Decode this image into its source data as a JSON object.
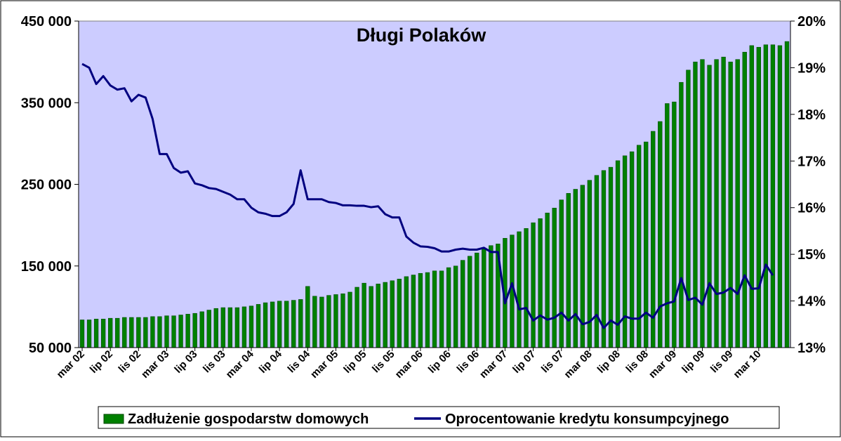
{
  "chart_data": {
    "type": "bar+line",
    "title": "Długi Polaków",
    "colors": {
      "plot_background": "#CCCCFF",
      "bars": "#008000",
      "bar_edge": "#004400",
      "line": "#000080"
    },
    "left_axis": {
      "ylim": [
        50000,
        450000
      ],
      "ticks": [
        50000,
        150000,
        250000,
        350000,
        450000
      ],
      "tick_labels": [
        "50 000",
        "150 000",
        "250 000",
        "350 000",
        "450 000"
      ]
    },
    "right_axis": {
      "ylim": [
        13,
        20
      ],
      "ticks": [
        13,
        14,
        15,
        16,
        17,
        18,
        19,
        20
      ],
      "tick_labels": [
        "13%",
        "14%",
        "15%",
        "16%",
        "17%",
        "18%",
        "19%",
        "20%"
      ]
    },
    "x_tick_labels": [
      "mar 02",
      "lip 02",
      "lis 02",
      "mar 03",
      "lip 03",
      "lis 03",
      "mar 04",
      "lip 04",
      "lis 04",
      "mar 05",
      "lip 05",
      "lis 05",
      "mar 06",
      "lip 06",
      "lis 06",
      "mar 07",
      "lip 07",
      "lis 07",
      "mar 08",
      "lip 08",
      "lis 08",
      "mar 09",
      "lip 09",
      "lis 09",
      "mar 10"
    ],
    "legend": {
      "position": "bottom",
      "bar_label": "Zadłużenie gospodarstw domowych",
      "line_label": "Oprocentowanie kredytu konsumpcyjnego"
    },
    "series_bar": [
      84000,
      84000,
      85000,
      85000,
      86000,
      86000,
      87000,
      87000,
      87000,
      87000,
      88000,
      88000,
      89000,
      89000,
      90000,
      91000,
      92000,
      94000,
      96000,
      98000,
      99000,
      99000,
      99000,
      100000,
      101000,
      103000,
      105000,
      106000,
      107000,
      107000,
      108000,
      109000,
      125000,
      113000,
      112000,
      114000,
      115000,
      116000,
      118000,
      124000,
      129000,
      125000,
      128000,
      130000,
      132000,
      134000,
      137000,
      139000,
      141000,
      142000,
      144000,
      144000,
      148000,
      150000,
      157000,
      162000,
      166000,
      171000,
      175000,
      177000,
      184000,
      188000,
      192000,
      196000,
      203000,
      208000,
      215000,
      221000,
      231000,
      239000,
      244000,
      249000,
      255000,
      261000,
      267000,
      271000,
      279000,
      285000,
      290000,
      298000,
      302000,
      315000,
      327000,
      349000,
      351000,
      375000,
      390000,
      400000,
      403000,
      396000,
      403000,
      406000,
      400000,
      403000,
      412000,
      420000,
      418000,
      421000,
      421000,
      420000,
      425000
    ],
    "series_line": [
      19.08,
      19.0,
      18.65,
      18.82,
      18.62,
      18.53,
      18.56,
      18.28,
      18.42,
      18.36,
      17.9,
      17.15,
      17.15,
      16.85,
      16.75,
      16.78,
      16.52,
      16.48,
      16.42,
      16.4,
      16.34,
      16.28,
      16.18,
      16.18,
      16.0,
      15.9,
      15.87,
      15.82,
      15.82,
      15.9,
      16.08,
      16.8,
      16.18,
      16.18,
      16.18,
      16.12,
      16.1,
      16.05,
      16.05,
      16.04,
      16.04,
      16.01,
      16.03,
      15.86,
      15.79,
      15.79,
      15.38,
      15.25,
      15.17,
      15.16,
      15.13,
      15.06,
      15.06,
      15.1,
      15.12,
      15.1,
      15.1,
      15.14,
      15.05,
      15.05,
      13.95,
      14.38,
      13.82,
      13.85,
      13.58,
      13.69,
      13.6,
      13.64,
      13.75,
      13.58,
      13.72,
      13.5,
      13.55,
      13.7,
      13.42,
      13.58,
      13.49,
      13.67,
      13.62,
      13.62,
      13.75,
      13.64,
      13.88,
      13.95,
      13.99,
      14.49,
      14.02,
      14.07,
      13.92,
      14.38,
      14.15,
      14.18,
      14.28,
      14.15,
      14.55,
      14.26,
      14.27,
      14.78,
      14.55
    ]
  }
}
